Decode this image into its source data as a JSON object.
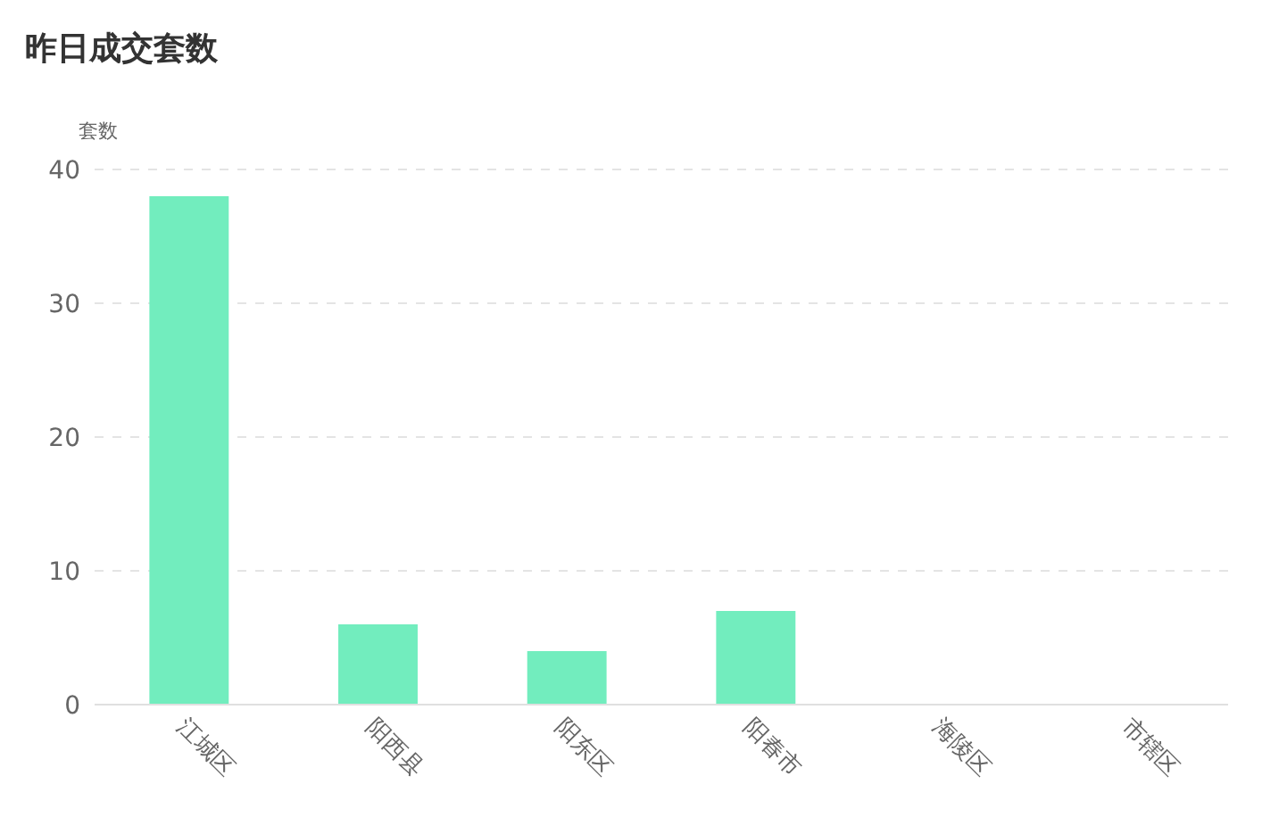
{
  "chart_data": {
    "type": "bar",
    "title": "昨日成交套数",
    "ylabel": "套数",
    "categories": [
      "江城区",
      "阳西县",
      "阳东区",
      "阳春市",
      "海陵区",
      "市辖区"
    ],
    "values": [
      38,
      6,
      4,
      7,
      0,
      0
    ],
    "color": "#72edbe",
    "ylim": [
      0,
      40
    ],
    "yticks": [
      0,
      10,
      20,
      30,
      40
    ],
    "grid": "y"
  }
}
